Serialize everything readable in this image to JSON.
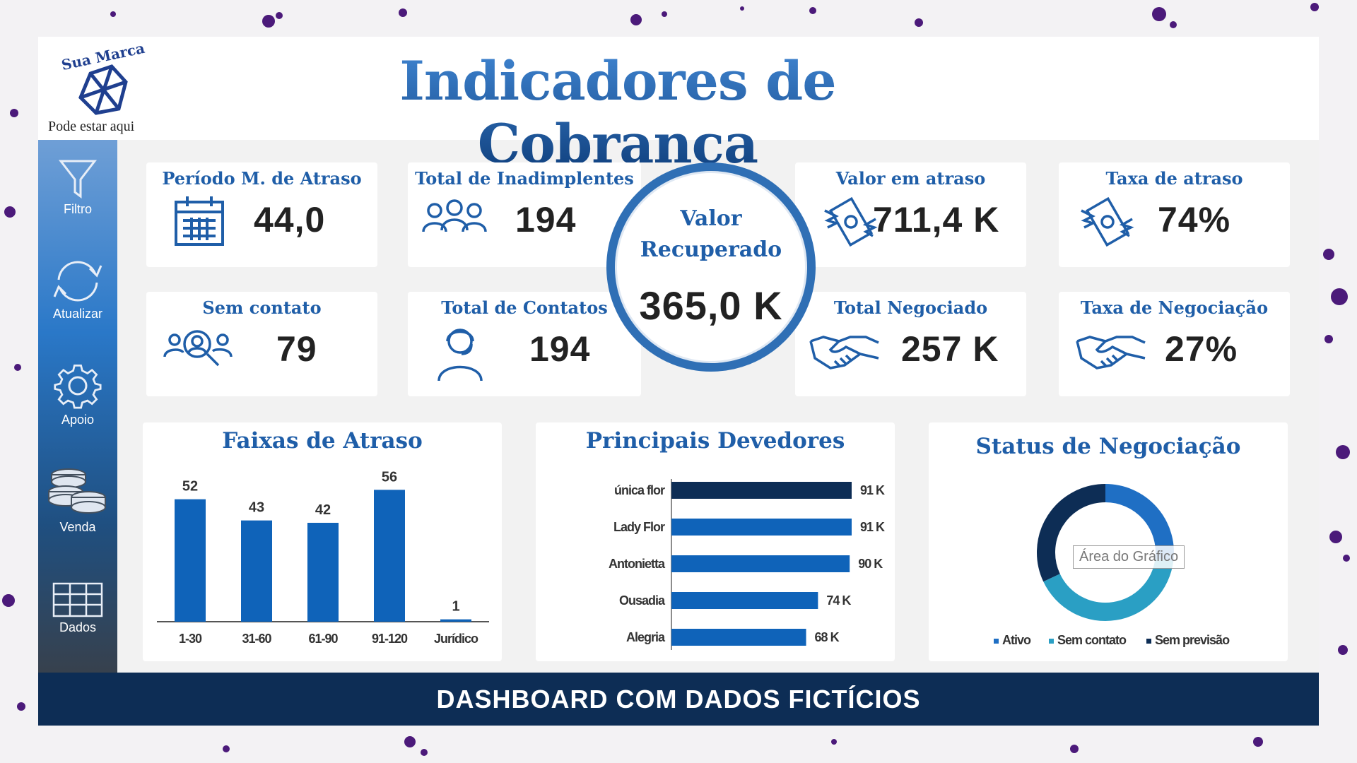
{
  "header": {
    "title": "Indicadores de Cobrança",
    "logo_brand": "Sua Marca",
    "logo_sub": "Pode estar aqui"
  },
  "sidebar": {
    "items": [
      {
        "label": "Filtro",
        "icon": "filter-icon"
      },
      {
        "label": "Atualizar",
        "icon": "refresh-icon"
      },
      {
        "label": "Apoio",
        "icon": "gear-icon"
      },
      {
        "label": "Venda",
        "icon": "coins-icon"
      },
      {
        "label": "Dados",
        "icon": "table-icon"
      }
    ]
  },
  "kpis": {
    "periodo": {
      "title": "Período M. de Atraso",
      "value": "44,0"
    },
    "inadimplentes": {
      "title": "Total de Inadimplentes",
      "value": "194"
    },
    "valor_atraso": {
      "title": "Valor em atraso",
      "value": "711,4 K"
    },
    "taxa_atraso": {
      "title": "Taxa de atraso",
      "value": "74%"
    },
    "sem_contato": {
      "title": "Sem contato",
      "value": "79"
    },
    "contatos": {
      "title": "Total de Contatos",
      "value": "194"
    },
    "negociado": {
      "title": "Total Negociado",
      "value": "257 K"
    },
    "taxa_negociacao": {
      "title": "Taxa de Negociação",
      "value": "27%"
    },
    "recuperado": {
      "title_line1": "Valor",
      "title_line2": "Recuperado",
      "value": "365,0 K"
    }
  },
  "colors": {
    "accent": "#1f5ea8",
    "bar": "#0f63b9",
    "dark": "#0d2d55",
    "teal": "#2a9fc4"
  },
  "chart_data": [
    {
      "type": "bar",
      "title": "Faixas de Atraso",
      "categories": [
        "1-30",
        "31-60",
        "61-90",
        "91-120",
        "Jurídico"
      ],
      "values": [
        52,
        43,
        42,
        56,
        1
      ],
      "ylim": [
        0,
        60
      ]
    },
    {
      "type": "bar",
      "orientation": "horizontal",
      "title": "Principais Devedores",
      "categories": [
        "única flor",
        "Lady Flor",
        "Antonietta",
        "Ousadia",
        "Alegria"
      ],
      "values": [
        91,
        91,
        90,
        74,
        68
      ],
      "labels": [
        "91 K",
        "91 K",
        "90 K",
        "74 K",
        "68 K"
      ],
      "unit": "K"
    },
    {
      "type": "pie",
      "title": "Status de Negociação",
      "categories": [
        "Ativo",
        "Sem contato",
        "Sem previsão"
      ],
      "values": [
        27,
        41,
        32
      ],
      "colors": [
        "#1f6fc4",
        "#2a9fc4",
        "#0d2d55"
      ]
    }
  ],
  "tooltip": "Área do Gráfico",
  "footer": "DASHBOARD COM DADOS FICTÍCIOS"
}
